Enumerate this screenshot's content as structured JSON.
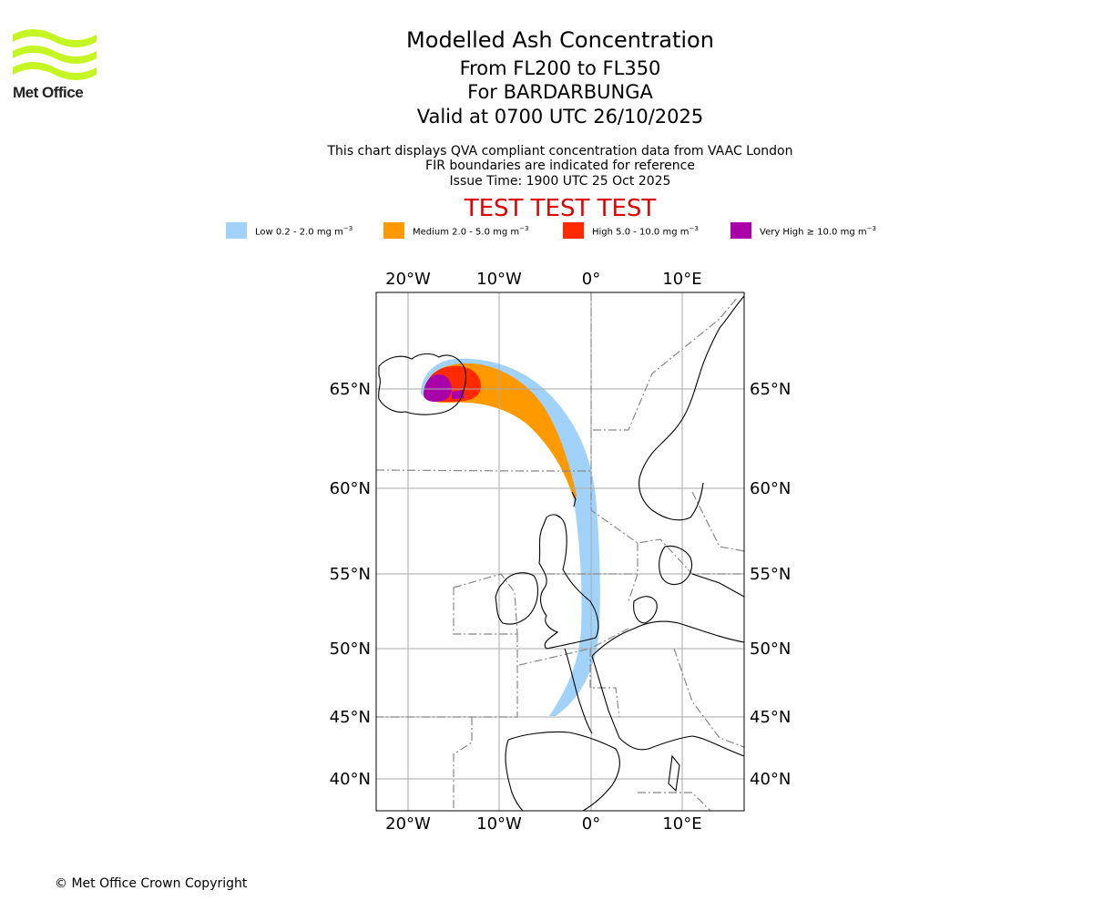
{
  "logo": {
    "name": "Met Office",
    "colors": {
      "waves": "#c6f524",
      "text": "#222222"
    }
  },
  "titles": {
    "main": "Modelled Ash Concentration",
    "levels": "From FL200 to FL350",
    "volcano": "For BARDARBUNGA",
    "valid": "Valid at 0700 UTC 26/10/2025"
  },
  "subtitles": {
    "line1": "This chart displays QVA compliant concentration data from VAAC London",
    "line2": "FIR boundaries are indicated for reference",
    "issue": "Issue Time: 1900 UTC 25 Oct 2025"
  },
  "test_banner": {
    "text": "TEST TEST TEST",
    "color": "#e00000"
  },
  "legend": [
    {
      "label": "Low 0.2 - 2.0 mg m",
      "unit_exp": "−3",
      "color": "#a0d2fa"
    },
    {
      "label": "Medium 2.0 - 5.0 mg m",
      "unit_exp": "−3",
      "color": "#ff9900"
    },
    {
      "label": "High 5.0 - 10.0 mg m",
      "unit_exp": "−3",
      "color": "#ff2a00"
    },
    {
      "label": "Very High  ≥  10.0 mg m",
      "unit_exp": "−3",
      "color": "#aa00aa"
    }
  ],
  "map": {
    "lon_ticks": [
      "20°W",
      "10°W",
      "0°",
      "10°E"
    ],
    "lat_ticks": [
      "65°N",
      "60°N",
      "55°N",
      "50°N",
      "45°N",
      "40°N"
    ]
  },
  "footer": {
    "copyright": "© Met Office Crown Copyright"
  }
}
